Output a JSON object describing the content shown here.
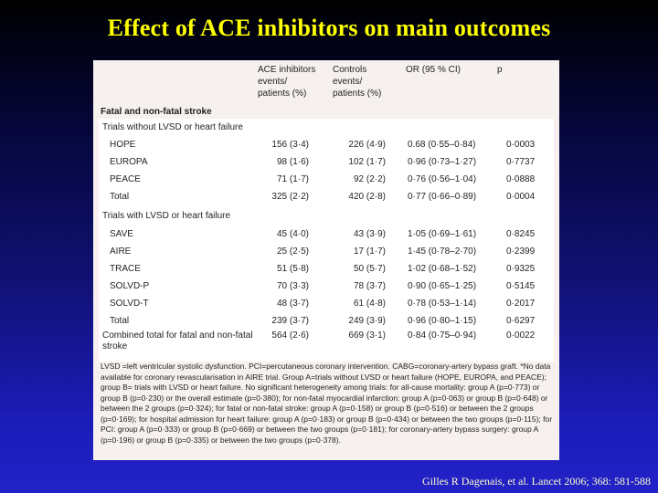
{
  "title": "Effect of ACE inhibitors on main outcomes",
  "table": {
    "headers": {
      "col1": [
        "ACE inhibitors",
        "events/",
        "patients (%)"
      ],
      "col2": [
        "Controls",
        "events/",
        "patients (%)"
      ],
      "col3": "OR (95 % CI)",
      "col4": "p"
    },
    "section_title": "Fatal and non-fatal stroke",
    "groups": [
      {
        "title": "Trials without LVSD or heart failure",
        "rows": [
          {
            "name": "HOPE",
            "ace": "156 (3·4)",
            "ctrl": "226 (4·9)",
            "or": "0.68 (0·55–0·84)",
            "p": "0·0003"
          },
          {
            "name": "EUROPA",
            "ace": "98 (1·6)",
            "ctrl": "102 (1·7)",
            "or": "0·96 (0·73–1·27)",
            "p": "0·7737"
          },
          {
            "name": "PEACE",
            "ace": "71 (1·7)",
            "ctrl": "92 (2·2)",
            "or": "0·76 (0·56–1·04)",
            "p": "0·0888"
          },
          {
            "name": "Total",
            "ace": "325 (2·2)",
            "ctrl": "420 (2·8)",
            "or": "0·77 (0·66–0·89)",
            "p": "0·0004"
          }
        ]
      },
      {
        "title": "Trials with LVSD or heart failure",
        "rows": [
          {
            "name": "SAVE",
            "ace": "45 (4·0)",
            "ctrl": "43 (3·9)",
            "or": "1·05 (0·69–1·61)",
            "p": "0·8245"
          },
          {
            "name": "AIRE",
            "ace": "25 (2·5)",
            "ctrl": "17 (1·7)",
            "or": "1·45 (0·78–2·70)",
            "p": "0·2399"
          },
          {
            "name": "TRACE",
            "ace": "51 (5·8)",
            "ctrl": "50 (5·7)",
            "or": "1·02 (0·68–1·52)",
            "p": "0·9325"
          },
          {
            "name": "SOLVD-P",
            "ace": "70 (3·3)",
            "ctrl": "78 (3·7)",
            "or": "0·90 (0·65–1·25)",
            "p": "0·5145"
          },
          {
            "name": "SOLVD-T",
            "ace": "48 (3·7)",
            "ctrl": "61 (4·8)",
            "or": "0·78 (0·53–1·14)",
            "p": "0·2017"
          },
          {
            "name": "Total",
            "ace": "239 (3·7)",
            "ctrl": "249 (3·9)",
            "or": "0·96 (0·80–1·15)",
            "p": "0·6297"
          }
        ]
      }
    ],
    "combined": {
      "name": "Combined total for fatal and non-fatal stroke",
      "ace": "564 (2·6)",
      "ctrl": "669 (3·1)",
      "or": "0·84 (0·75–0·94)",
      "p": "0·0022"
    },
    "footnote": "LVSD =left ventricular systolic dysfunction. PCI=percutaneous coronary intervention. CABG=coronary-artery bypass graft. *No data available for coronary revascularisation in AIRE trial. Group A=trials without LVSD or heart failure (HOPE, EUROPA, and PEACE); group B= trials with LVSD or heart failure. No significant heterogeneity among trials: for all-cause mortality: group A (p=0·773) or group B (p=0·230) or the overall estimate (p=0·380); for non-fatal myocardial infarction: group A (p=0·063) or group B (p=0·648) or between the 2 groups (p=0·324); for fatal or non-fatal stroke: group A (p=0·158) or group B (p=0·516) or between the 2 groups (p=0·169); for hospital admission for heart failure: group A (p=0·183) or group B (p=0·434) or between the two groups (p=0·115); for PCI: group A (p=0·333) or group B (p=0·669) or between the two groups (p=0·181); for coronary-artery bypass surgery: group A (p=0·196) or group B (p=0·335) or between the two groups (p=0·378)."
  },
  "citation": "Gilles R Dagenais, et al. Lancet 2006; 368: 581-588"
}
